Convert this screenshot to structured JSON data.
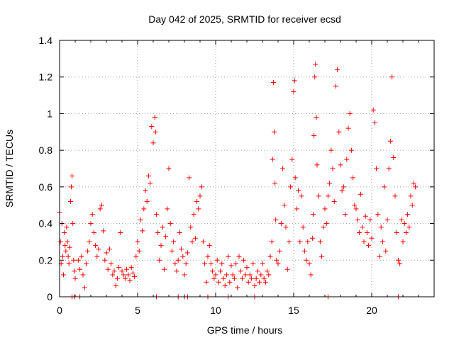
{
  "chart_data": {
    "type": "scatter",
    "title": "Day 042 of 2025, SRMTID for receiver ecsd",
    "xlabel": "GPS time / hours",
    "ylabel": "SRMTID / TECUs",
    "xlim": [
      0,
      24
    ],
    "ylim": [
      0,
      1.4
    ],
    "x_ticks": [
      "0",
      "5",
      "10",
      "15",
      "20"
    ],
    "x_tick_values": [
      0,
      5,
      10,
      15,
      20
    ],
    "y_ticks": [
      "0",
      "0.2",
      "0.4",
      "0.6",
      "0.8",
      "1",
      "1.2",
      "1.4"
    ],
    "y_tick_values": [
      0,
      0.2,
      0.4,
      0.6,
      0.8,
      1.0,
      1.2,
      1.4
    ],
    "grid": true,
    "marker": "+",
    "series": [
      {
        "name": "SRMTID",
        "color": "#ff0000",
        "points": [
          [
            0.0,
            0.46
          ],
          [
            0.05,
            0.3
          ],
          [
            0.1,
            0.18
          ],
          [
            0.15,
            0.4
          ],
          [
            0.2,
            0.22
          ],
          [
            0.25,
            0.12
          ],
          [
            0.3,
            0.35
          ],
          [
            0.35,
            0.28
          ],
          [
            0.4,
            0.25
          ],
          [
            0.45,
            0.38
          ],
          [
            0.5,
            0.3
          ],
          [
            0.55,
            0.22
          ],
          [
            0.6,
            0.18
          ],
          [
            0.65,
            0.27
          ],
          [
            0.7,
            0.52
          ],
          [
            0.75,
            0.6
          ],
          [
            0.8,
            0.66
          ],
          [
            0.85,
            0.4
          ],
          [
            0.9,
            0.2
          ],
          [
            0.95,
            0.14
          ],
          [
            1.0,
            0.1
          ],
          [
            0.8,
            0.0
          ],
          [
            0.95,
            0.0
          ],
          [
            1.3,
            0.0
          ],
          [
            1.2,
            0.2
          ],
          [
            1.3,
            0.15
          ],
          [
            1.4,
            0.22
          ],
          [
            1.5,
            0.12
          ],
          [
            1.6,
            0.05
          ],
          [
            1.7,
            0.18
          ],
          [
            1.8,
            0.25
          ],
          [
            1.9,
            0.3
          ],
          [
            2.0,
            0.4
          ],
          [
            2.1,
            0.45
          ],
          [
            2.2,
            0.35
          ],
          [
            2.3,
            0.28
          ],
          [
            2.4,
            0.22
          ],
          [
            2.5,
            0.26
          ],
          [
            2.6,
            0.48
          ],
          [
            2.7,
            0.5
          ],
          [
            2.8,
            0.36
          ],
          [
            2.9,
            0.2
          ],
          [
            3.0,
            0.24
          ],
          [
            3.1,
            0.15
          ],
          [
            3.2,
            0.26
          ],
          [
            3.3,
            0.18
          ],
          [
            3.4,
            0.12
          ],
          [
            3.5,
            0.14
          ],
          [
            3.6,
            0.06
          ],
          [
            3.7,
            0.1
          ],
          [
            3.8,
            0.16
          ],
          [
            3.9,
            0.35
          ],
          [
            4.0,
            0.14
          ],
          [
            4.1,
            0.12
          ],
          [
            4.2,
            0.1
          ],
          [
            4.3,
            0.15
          ],
          [
            4.4,
            0.12
          ],
          [
            4.5,
            0.09
          ],
          [
            4.6,
            0.16
          ],
          [
            4.7,
            0.13
          ],
          [
            4.8,
            0.11
          ],
          [
            4.9,
            0.22
          ],
          [
            5.0,
            0.3
          ],
          [
            5.1,
            0.25
          ],
          [
            5.2,
            0.42
          ],
          [
            5.3,
            0.36
          ],
          [
            5.4,
            0.48
          ],
          [
            5.5,
            0.58
          ],
          [
            5.6,
            0.52
          ],
          [
            5.7,
            0.66
          ],
          [
            5.8,
            0.62
          ],
          [
            5.9,
            0.93
          ],
          [
            6.0,
            0.84
          ],
          [
            6.1,
            0.98
          ],
          [
            6.15,
            0.9
          ],
          [
            6.2,
            0.45
          ],
          [
            6.3,
            0.35
          ],
          [
            6.4,
            0.2
          ],
          [
            6.5,
            0.28
          ],
          [
            6.6,
            0.38
          ],
          [
            6.7,
            0.15
          ],
          [
            6.8,
            0.33
          ],
          [
            6.9,
            0.48
          ],
          [
            7.0,
            0.7
          ],
          [
            7.1,
            0.4
          ],
          [
            7.2,
            0.25
          ],
          [
            7.3,
            0.3
          ],
          [
            7.4,
            0.18
          ],
          [
            7.5,
            0.14
          ],
          [
            7.6,
            0.2
          ],
          [
            7.7,
            0.35
          ],
          [
            7.8,
            0.26
          ],
          [
            7.9,
            0.22
          ],
          [
            8.0,
            0.12
          ],
          [
            8.1,
            0.18
          ],
          [
            8.2,
            0.24
          ],
          [
            6.2,
            0.0
          ],
          [
            7.6,
            0.0
          ],
          [
            8.0,
            0.0
          ],
          [
            8.2,
            0.0
          ],
          [
            9.5,
            0.0
          ],
          [
            10.8,
            0.0
          ],
          [
            12.5,
            0.0
          ],
          [
            8.3,
            0.65
          ],
          [
            8.4,
            0.38
          ],
          [
            8.5,
            0.3
          ],
          [
            8.6,
            0.45
          ],
          [
            8.7,
            0.32
          ],
          [
            8.8,
            0.52
          ],
          [
            8.9,
            0.48
          ],
          [
            9.0,
            0.55
          ],
          [
            9.1,
            0.6
          ],
          [
            9.2,
            0.3
          ],
          [
            9.3,
            0.18
          ],
          [
            9.4,
            0.08
          ],
          [
            9.5,
            0.22
          ],
          [
            9.6,
            0.28
          ],
          [
            9.7,
            0.18
          ],
          [
            9.8,
            0.14
          ],
          [
            9.9,
            0.1
          ],
          [
            10.0,
            0.12
          ],
          [
            10.1,
            0.2
          ],
          [
            10.2,
            0.08
          ],
          [
            10.3,
            0.14
          ],
          [
            10.4,
            0.18
          ],
          [
            10.5,
            0.1
          ],
          [
            10.6,
            0.06
          ],
          [
            10.7,
            0.12
          ],
          [
            10.8,
            0.22
          ],
          [
            10.9,
            0.08
          ],
          [
            11.0,
            0.17
          ],
          [
            11.1,
            0.12
          ],
          [
            11.2,
            0.1
          ],
          [
            11.3,
            0.18
          ],
          [
            11.4,
            0.05
          ],
          [
            11.5,
            0.22
          ],
          [
            11.6,
            0.14
          ],
          [
            11.7,
            0.1
          ],
          [
            11.8,
            0.2
          ],
          [
            11.9,
            0.12
          ],
          [
            12.0,
            0.16
          ],
          [
            12.1,
            0.08
          ],
          [
            12.2,
            0.12
          ],
          [
            12.3,
            0.1
          ],
          [
            12.4,
            0.18
          ],
          [
            12.5,
            0.06
          ],
          [
            12.6,
            0.1
          ],
          [
            12.7,
            0.14
          ],
          [
            12.8,
            0.08
          ],
          [
            12.9,
            0.12
          ],
          [
            13.0,
            0.18
          ],
          [
            13.1,
            0.1
          ],
          [
            13.2,
            0.08
          ],
          [
            13.3,
            0.14
          ],
          [
            13.4,
            0.12
          ],
          [
            13.5,
            0.22
          ],
          [
            13.6,
            0.3
          ],
          [
            13.65,
            0.75
          ],
          [
            13.7,
            1.17
          ],
          [
            13.75,
            0.9
          ],
          [
            13.8,
            0.62
          ],
          [
            13.85,
            0.42
          ],
          [
            13.9,
            0.2
          ],
          [
            14.0,
            0.18
          ],
          [
            14.1,
            0.25
          ],
          [
            14.2,
            0.4
          ],
          [
            14.3,
            0.7
          ],
          [
            14.4,
            0.5
          ],
          [
            14.5,
            0.38
          ],
          [
            14.6,
            0.15
          ],
          [
            14.7,
            0.3
          ],
          [
            14.8,
            0.6
          ],
          [
            14.9,
            0.75
          ],
          [
            15.0,
            1.12
          ],
          [
            15.05,
            1.18
          ],
          [
            15.1,
            0.65
          ],
          [
            15.2,
            0.48
          ],
          [
            15.3,
            0.58
          ],
          [
            15.4,
            0.3
          ],
          [
            15.5,
            0.55
          ],
          [
            15.6,
            0.38
          ],
          [
            15.7,
            0.25
          ],
          [
            15.8,
            0.2
          ],
          [
            15.9,
            0.3
          ],
          [
            16.0,
            0.18
          ],
          [
            16.1,
            0.12
          ],
          [
            16.2,
            0.32
          ],
          [
            16.25,
            0.45
          ],
          [
            16.3,
            0.88
          ],
          [
            16.35,
            1.2
          ],
          [
            16.4,
            1.27
          ],
          [
            16.45,
            0.98
          ],
          [
            16.5,
            0.72
          ],
          [
            16.6,
            0.55
          ],
          [
            16.7,
            0.3
          ],
          [
            16.8,
            0.22
          ],
          [
            16.9,
            0.38
          ],
          [
            17.0,
            0.48
          ],
          [
            17.1,
            0.4
          ],
          [
            17.2,
            0.55
          ],
          [
            17.3,
            0.62
          ],
          [
            17.4,
            0.8
          ],
          [
            17.5,
            0.7
          ],
          [
            17.6,
            0.52
          ],
          [
            17.7,
            1.15
          ],
          [
            17.8,
            1.24
          ],
          [
            17.9,
            0.9
          ],
          [
            18.0,
            0.72
          ],
          [
            18.1,
            0.58
          ],
          [
            18.2,
            0.6
          ],
          [
            18.3,
            0.45
          ],
          [
            18.4,
            0.75
          ],
          [
            18.5,
            0.92
          ],
          [
            18.6,
            1.0
          ],
          [
            18.7,
            0.8
          ],
          [
            18.8,
            0.65
          ],
          [
            18.9,
            0.5
          ],
          [
            19.0,
            0.48
          ],
          [
            19.1,
            0.42
          ],
          [
            19.2,
            0.35
          ],
          [
            19.3,
            0.56
          ],
          [
            19.4,
            0.38
          ],
          [
            19.5,
            0.3
          ],
          [
            19.6,
            0.44
          ],
          [
            19.7,
            0.35
          ],
          [
            19.8,
            0.28
          ],
          [
            19.9,
            0.42
          ],
          [
            20.0,
            0.32
          ],
          [
            20.1,
            1.02
          ],
          [
            20.2,
            0.95
          ],
          [
            20.3,
            0.7
          ],
          [
            20.4,
            0.45
          ],
          [
            20.5,
            0.22
          ],
          [
            20.6,
            0.38
          ],
          [
            20.7,
            0.3
          ],
          [
            20.8,
            0.6
          ],
          [
            20.9,
            0.25
          ],
          [
            21.0,
            0.42
          ],
          [
            21.1,
            0.7
          ],
          [
            21.2,
            0.85
          ],
          [
            21.3,
            1.2
          ],
          [
            21.4,
            0.76
          ],
          [
            21.5,
            0.55
          ],
          [
            21.6,
            0.35
          ],
          [
            21.7,
            0.2
          ],
          [
            21.8,
            0.18
          ],
          [
            21.9,
            0.42
          ],
          [
            22.0,
            0.3
          ],
          [
            22.1,
            0.4
          ],
          [
            22.2,
            0.35
          ],
          [
            22.3,
            0.45
          ],
          [
            22.4,
            0.38
          ],
          [
            22.5,
            0.55
          ],
          [
            22.6,
            0.5
          ],
          [
            22.7,
            0.62
          ],
          [
            22.8,
            0.6
          ],
          [
            17.2,
            0.0
          ],
          [
            21.7,
            0.0
          ]
        ]
      }
    ]
  }
}
